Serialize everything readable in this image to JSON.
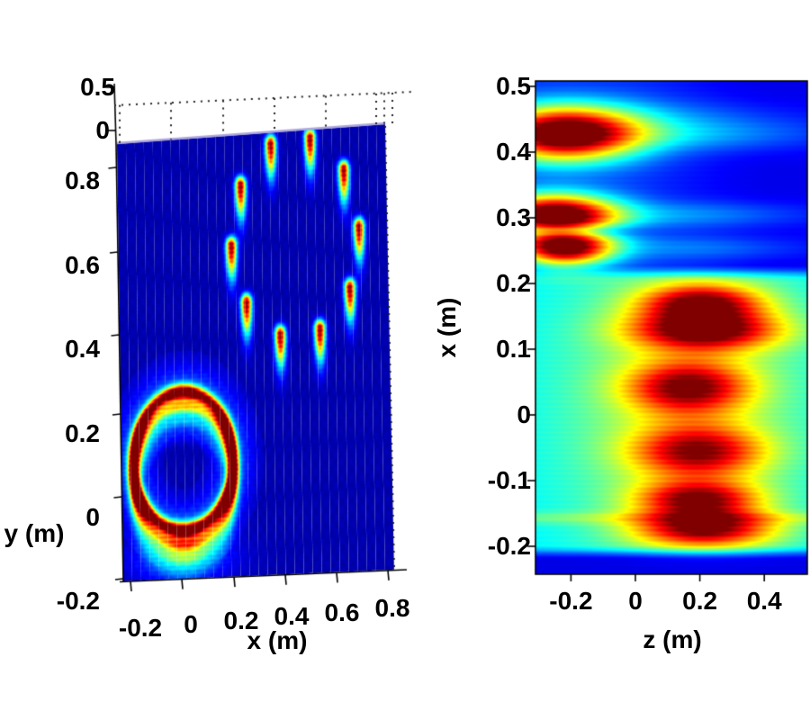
{
  "figure": {
    "background": "#ffffff",
    "colormap": "jet",
    "colors": {
      "cold_blue": "#0000a0",
      "cyan": "#00ccff",
      "hot_red": "#c00000",
      "text": "#000000"
    }
  },
  "chart_data": [
    {
      "type": "heatmap",
      "panel": "left",
      "projection": "3d-surface-top-view",
      "title": "",
      "xlabel": "x (m)",
      "ylabel": "y (m)",
      "x_tick_labels": [
        "-0.2",
        "0",
        "0.2",
        "0.4",
        "0.6",
        "0.8"
      ],
      "x_tick_values": [
        -0.2,
        0,
        0.2,
        0.4,
        0.6,
        0.8
      ],
      "y_tick_labels": [
        "0.8",
        "0.6",
        "0.4",
        "0.2",
        "0",
        "-0.2"
      ],
      "y_tick_values": [
        0.8,
        0.6,
        0.4,
        0.2,
        0,
        -0.2
      ],
      "z_tick_labels": [
        "0.5",
        "0"
      ],
      "z_tick_values": [
        0.5,
        0
      ],
      "x_range": [
        -0.23,
        0.82
      ],
      "y_range": [
        -0.15,
        0.885
      ],
      "colormap": "jet",
      "background_level": 0.045,
      "dot_ring": {
        "cx": 0.46,
        "cy": 0.64,
        "rx": 0.25,
        "ry": 0.235,
        "count": 10,
        "angle_offset_deg": 3,
        "peak": 0.95,
        "sigma_x": 0.0145,
        "sigma_up": 0.0135,
        "sigma_down": 0.052
      },
      "solid_ring": {
        "cx": 0.01,
        "cy": 0.127,
        "rx": 0.195,
        "ry": 0.163,
        "peak": 0.95,
        "width_sigma": 0.075,
        "glow_amp": 0.16,
        "glow_sigma": 0.3,
        "smear_dy": 0.034,
        "smear_weights": [
          1,
          0.48,
          0.2,
          0.08
        ]
      },
      "bottom_smear": {
        "cx": 0.0,
        "cy": -0.1,
        "amp": 0.22,
        "sx": 0.13,
        "sy": 0.042
      }
    },
    {
      "type": "heatmap",
      "panel": "right",
      "title": "",
      "xlabel": "z (m)",
      "ylabel": "x (m)",
      "x_tick_labels": [
        "-0.2",
        "0",
        "0.2",
        "0.4"
      ],
      "x_tick_values": [
        -0.2,
        0,
        0.2,
        0.4
      ],
      "y_tick_labels": [
        "0.5",
        "0.4",
        "0.3",
        "0.2",
        "0.1",
        "0",
        "-0.1",
        "-0.2"
      ],
      "y_tick_values": [
        0.5,
        0.4,
        0.3,
        0.2,
        0.1,
        0,
        -0.1,
        -0.2
      ],
      "x_range": [
        -0.31,
        0.525
      ],
      "y_range": [
        -0.24,
        0.504
      ],
      "colormap": "jet",
      "background": {
        "inside_level": 0.34,
        "top_level": 0.16,
        "top_gradient": 0.055,
        "bottom_level": 0.1,
        "band_top_x": 0.215,
        "band_bottom_x": -0.207
      },
      "halo": {
        "z": 0.15,
        "x": 0.02,
        "amp": 0.2,
        "sz": 0.3,
        "sx": 0.2
      },
      "blobs": [
        {
          "z": -0.22,
          "x": 0.424,
          "amp": 0.95,
          "sz": 0.16,
          "sx": 0.029
        },
        {
          "z": -0.25,
          "x": 0.302,
          "amp": 0.97,
          "sz": 0.135,
          "sx": 0.022
        },
        {
          "z": -0.22,
          "x": 0.252,
          "amp": 0.88,
          "sz": 0.105,
          "sx": 0.019
        },
        {
          "z": 0.2,
          "x": 0.17,
          "amp": 0.54,
          "sz": 0.13,
          "sx": 0.02
        },
        {
          "z": 0.21,
          "x": 0.128,
          "amp": 0.6,
          "sz": 0.16,
          "sx": 0.021
        },
        {
          "z": 0.16,
          "x": 0.042,
          "amp": 0.52,
          "sz": 0.13,
          "sx": 0.028
        },
        {
          "z": 0.19,
          "x": -0.055,
          "amp": 0.5,
          "sz": 0.14,
          "sx": 0.028
        },
        {
          "z": 0.19,
          "x": -0.127,
          "amp": 0.52,
          "sz": 0.13,
          "sx": 0.019
        },
        {
          "z": 0.21,
          "x": -0.172,
          "amp": 0.57,
          "sz": 0.15,
          "sx": 0.019
        }
      ],
      "streaks": [
        {
          "z": 0.15,
          "x": 0.424,
          "amp": 0.17,
          "sz": 0.3,
          "sx": 0.018
        },
        {
          "z": 0.18,
          "x": 0.302,
          "amp": 0.13,
          "sz": 0.26,
          "sx": 0.014
        },
        {
          "z": 0.2,
          "x": 0.252,
          "amp": 0.11,
          "sz": 0.24,
          "sx": 0.013
        },
        {
          "z": 0.05,
          "x": 0.455,
          "amp": 0.07,
          "sz": 0.3,
          "sx": 0.016
        }
      ],
      "null_line": {
        "x": 0.278,
        "z": -0.22,
        "amp": -0.3,
        "sx": 0.0075,
        "sz": 0.13
      },
      "faint_line": {
        "x": -0.155,
        "amp": 0.09,
        "sx": 0.007
      }
    }
  ]
}
